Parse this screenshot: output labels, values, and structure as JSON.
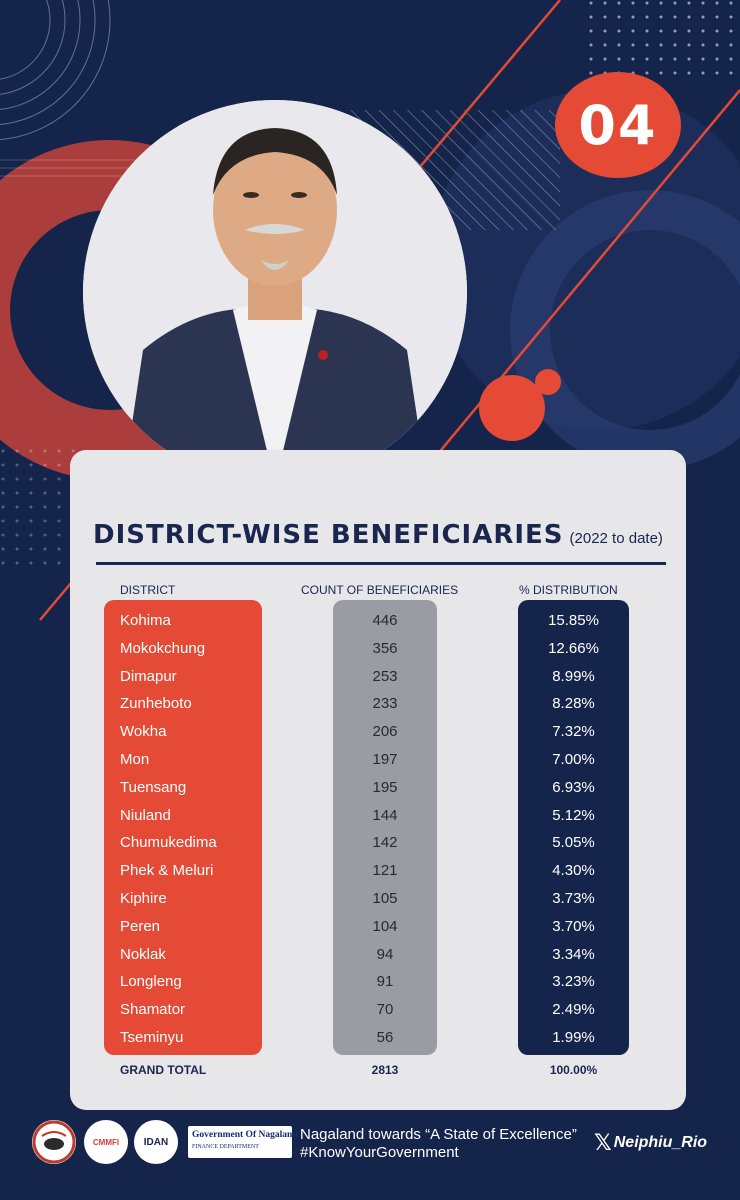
{
  "badge": {
    "number": "04"
  },
  "title": "DISTRICT-WISE BENEFICIARIES",
  "subtitle": "(2022 to date)",
  "table": {
    "headers": [
      "DISTRICT",
      "COUNT OF BENEFICIARIES",
      "% DISTRIBUTION"
    ],
    "rows": [
      {
        "district": "Kohima",
        "count": "446",
        "pct": "15.85%"
      },
      {
        "district": "Mokokchung",
        "count": "356",
        "pct": "12.66%"
      },
      {
        "district": "Dimapur",
        "count": "253",
        "pct": "8.99%"
      },
      {
        "district": "Zunheboto",
        "count": "233",
        "pct": "8.28%"
      },
      {
        "district": "Wokha",
        "count": "206",
        "pct": "7.32%"
      },
      {
        "district": "Mon",
        "count": "197",
        "pct": "7.00%"
      },
      {
        "district": "Tuensang",
        "count": "195",
        "pct": "6.93%"
      },
      {
        "district": "Niuland",
        "count": "144",
        "pct": "5.12%"
      },
      {
        "district": "Chumukedima",
        "count": "142",
        "pct": "5.05%"
      },
      {
        "district": "Phek & Meluri",
        "count": "121",
        "pct": "4.30%"
      },
      {
        "district": "Kiphire",
        "count": "105",
        "pct": "3.73%"
      },
      {
        "district": "Peren",
        "count": "104",
        "pct": "3.70%"
      },
      {
        "district": "Noklak",
        "count": "94",
        "pct": "3.34%"
      },
      {
        "district": "Longleng",
        "count": "91",
        "pct": "3.23%"
      },
      {
        "district": "Shamator",
        "count": "70",
        "pct": "2.49%"
      },
      {
        "district": "Tseminyu",
        "count": "56",
        "pct": "1.99%"
      }
    ],
    "total": {
      "label": "GRAND TOTAL",
      "count": "2813",
      "pct": "100.00%"
    }
  },
  "footer": {
    "logos": [
      "CMMFI",
      "IDAN"
    ],
    "gov_main": "Government Of Nagaland",
    "gov_sub": "FINANCE DEPARTMENT",
    "slogan_line1": "Nagaland towards “A  State of Excellence”",
    "slogan_line2": "#KnowYourGovernment",
    "x_handle": "Neiphiu_Rio"
  },
  "colors": {
    "background": "#15244a",
    "accent_red": "#e44a36",
    "grey_column": "#9b9ba3",
    "navy_column": "#15244a",
    "card": "#e7e7ea"
  }
}
